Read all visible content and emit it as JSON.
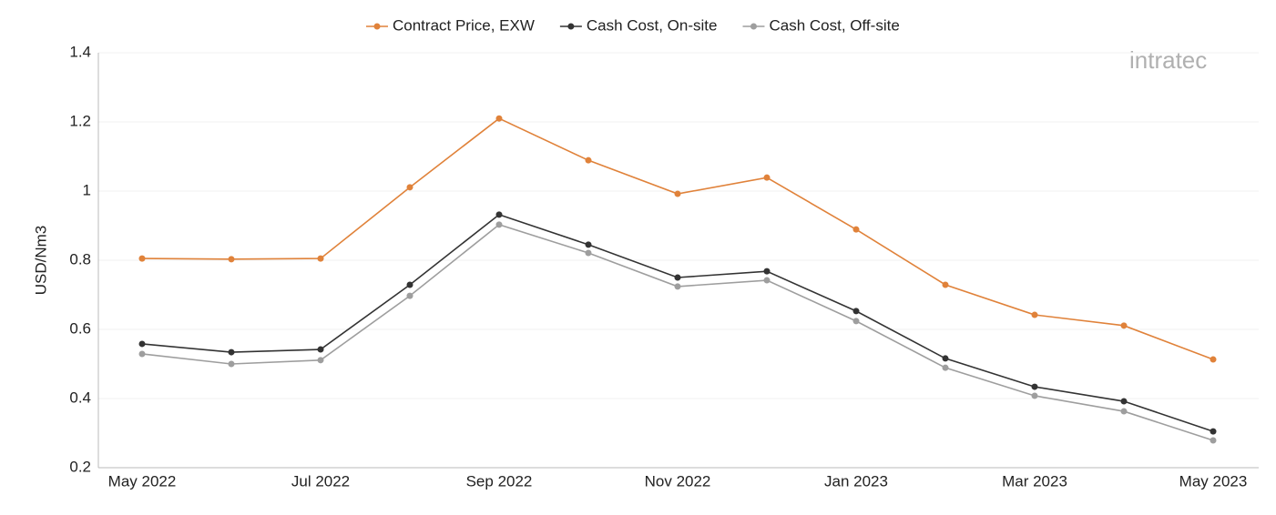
{
  "chart_data": {
    "type": "line",
    "y_label": "USD/Nm3",
    "watermark": "intratec",
    "categories": [
      "May 2022",
      null,
      "Jul 2022",
      null,
      "Sep 2022",
      null,
      "Nov 2022",
      null,
      "Jan 2023",
      null,
      "Mar 2023",
      null,
      "May 2023"
    ],
    "series": [
      {
        "name": "Contract Price, EXW",
        "color": "#e0823a",
        "values": [
          0.805,
          0.803,
          0.805,
          1.011,
          1.21,
          1.089,
          0.992,
          1.039,
          0.889,
          0.729,
          0.642,
          0.611,
          0.513
        ]
      },
      {
        "name": "Cash Cost, On-site",
        "color": "#333333",
        "values": [
          0.558,
          0.534,
          0.542,
          0.729,
          0.932,
          0.845,
          0.75,
          0.768,
          0.653,
          0.516,
          0.434,
          0.392,
          0.305
        ]
      },
      {
        "name": "Cash Cost, Off-site",
        "color": "#9e9e9e",
        "values": [
          0.529,
          0.5,
          0.511,
          0.697,
          0.903,
          0.821,
          0.724,
          0.742,
          0.624,
          0.489,
          0.408,
          0.363,
          0.279
        ]
      }
    ],
    "ylim": [
      0.2,
      1.4
    ],
    "yticks": [
      0.2,
      0.4,
      0.6,
      0.8,
      1,
      1.2,
      1.4
    ],
    "grid": true,
    "legend": "top"
  }
}
